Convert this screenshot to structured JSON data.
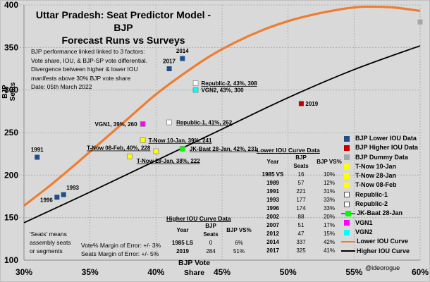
{
  "chart_data": {
    "type": "scatter",
    "title": "Uttar Pradesh: Seat Predictor Model - BJP Forecast Runs vs Surveys",
    "title_lines": [
      "Uttar Pradesh: Seat Predictor Model - BJP",
      "Forecast Runs vs Surveys"
    ],
    "xlabel_lines": [
      "BJP Vote",
      "Share"
    ],
    "ylabel_lines": [
      "BJP",
      "Seats"
    ],
    "xlim": [
      30,
      60
    ],
    "ylim": [
      100,
      400
    ],
    "x_ticks": [
      30,
      35,
      40,
      45,
      50,
      55,
      60
    ],
    "x_tick_labels": [
      "30%",
      "35%",
      "40%",
      "45%",
      "50%",
      "55%",
      "60%"
    ],
    "y_ticks": [
      100,
      150,
      200,
      250,
      300,
      350,
      400
    ],
    "y_tick_labels": [
      "100",
      "150",
      "200",
      "250",
      "300",
      "350",
      "400"
    ],
    "grid": true,
    "legend_position": "right",
    "series": [
      {
        "name": "BJP Lower IOU Data",
        "color": "#1f4e8c",
        "marker": "square",
        "points": [
          {
            "x": 31,
            "y": 221,
            "label": "1991"
          },
          {
            "x": 33,
            "y": 177,
            "label": "1993"
          },
          {
            "x": 32.5,
            "y": 174,
            "label": "1996"
          },
          {
            "x": 42,
            "y": 337,
            "label": "2014"
          },
          {
            "x": 41,
            "y": 325,
            "label": "2017"
          }
        ]
      },
      {
        "name": "BJP Higher IOU Data",
        "color": "#c00000",
        "marker": "square",
        "points": [
          {
            "x": 51,
            "y": 284,
            "label": "2019"
          }
        ]
      },
      {
        "name": "BJP Dummy Data",
        "color": "#a6a6a6",
        "marker": "square",
        "points": [
          {
            "x": 60,
            "y": 380,
            "label": ""
          }
        ]
      },
      {
        "name": "T-Now 10-Jan",
        "color": "#ffff00",
        "marker": "square",
        "points": [
          {
            "x": 39,
            "y": 241,
            "label": "T-Now 10-Jan, 39%, 241"
          }
        ]
      },
      {
        "name": "T-Now 28-Jan",
        "color": "#ffff00",
        "marker": "square",
        "points": [
          {
            "x": 38,
            "y": 222,
            "label": "T-Now 28-Jan, 38%, 222"
          }
        ]
      },
      {
        "name": "T-Now 08-Feb",
        "color": "#ffff00",
        "marker": "square",
        "points": [
          {
            "x": 40,
            "y": 228,
            "label": "T-Now 08-Feb, 40%, 228"
          }
        ]
      },
      {
        "name": "Republic-1",
        "color": "#ffffff",
        "marker": "square",
        "points": [
          {
            "x": 41,
            "y": 262,
            "label": "Republic-1, 41%, 262"
          }
        ]
      },
      {
        "name": "Republic-2",
        "color": "#ffffff",
        "marker": "square",
        "points": [
          {
            "x": 43,
            "y": 308,
            "label": "Republic-2, 43%, 308"
          }
        ]
      },
      {
        "name": "JK-Baat 28-Jan",
        "color": "#00ff00",
        "marker": "square",
        "points": [
          {
            "x": 42,
            "y": 231,
            "label": "JK-Baat 28-Jan, 42%, 231"
          }
        ]
      },
      {
        "name": "VGN1",
        "color": "#ff00ff",
        "marker": "square",
        "points": [
          {
            "x": 39,
            "y": 260,
            "label": "VGN1, 39%, 260"
          }
        ]
      },
      {
        "name": "VGN2",
        "color": "#00ffff",
        "marker": "square",
        "points": [
          {
            "x": 43,
            "y": 300,
            "label": "VGN2, 43%, 300"
          }
        ]
      }
    ],
    "curves": [
      {
        "name": "Lower IOU Curve",
        "color": "#ed7d31",
        "points": [
          [
            30,
            164
          ],
          [
            32,
            188
          ],
          [
            34,
            214
          ],
          [
            36,
            241
          ],
          [
            38,
            268
          ],
          [
            40,
            295
          ],
          [
            42,
            318
          ],
          [
            44,
            339
          ],
          [
            46,
            356
          ],
          [
            48,
            370
          ],
          [
            50,
            381
          ],
          [
            52,
            389
          ],
          [
            54,
            395
          ],
          [
            55,
            397
          ],
          [
            56,
            398
          ],
          [
            58,
            397
          ],
          [
            60,
            393
          ]
        ]
      },
      {
        "name": "Higher IOU Curve",
        "color": "#000000",
        "points": [
          [
            30,
            144
          ],
          [
            35,
            180
          ],
          [
            40,
            217
          ],
          [
            45,
            254
          ],
          [
            50,
            291
          ],
          [
            55,
            324
          ],
          [
            60,
            352
          ]
        ]
      }
    ]
  },
  "texts": {
    "description_lines": [
      "BJP performance linked linked to 3 factors:",
      "Vote share, IOU, & BJP-SP vote differential.",
      "Divergence between higher & lower IOU",
      "manifests above 30% BJP vote share"
    ],
    "date": "Date: 05th March 2022",
    "seats_note_lines": [
      "'Seats' means",
      "assembly seats",
      "or segments"
    ],
    "vote_moe": "Vote% Margin of Error: +/- 3%",
    "seats_moe": "Seats Margin of Error: +/- 5%",
    "watermark": "@ideorogue"
  },
  "lower_table": {
    "title": "Lower IOU Curve Data",
    "headers": [
      "Year",
      "BJP Seats",
      "BJP VS%"
    ],
    "rows": [
      [
        "1985 VS",
        "16",
        "10%"
      ],
      [
        "1989",
        "57",
        "12%"
      ],
      [
        "1991",
        "221",
        "31%"
      ],
      [
        "1993",
        "177",
        "33%"
      ],
      [
        "1996",
        "174",
        "33%"
      ],
      [
        "2002",
        "88",
        "20%"
      ],
      [
        "2007",
        "51",
        "17%"
      ],
      [
        "2012",
        "47",
        "15%"
      ],
      [
        "2014",
        "337",
        "42%"
      ],
      [
        "2017",
        "325",
        "41%"
      ]
    ]
  },
  "higher_table": {
    "title": "Higher IOU Curve Data",
    "headers": [
      "Year",
      "BJP Seats",
      "BJP VS%"
    ],
    "rows": [
      [
        "1985 LS",
        "0",
        "6%"
      ],
      [
        "2019",
        "284",
        "51%"
      ]
    ]
  },
  "legend": [
    {
      "label": "BJP Lower IOU Data",
      "color": "#1f4e8c",
      "kind": "square"
    },
    {
      "label": "BJP Higher IOU Data",
      "color": "#c00000",
      "kind": "square"
    },
    {
      "label": "BJP Dummy Data",
      "color": "#a6a6a6",
      "kind": "square"
    },
    {
      "label": "T-Now 10-Jan",
      "color": "#ffff00",
      "kind": "square"
    },
    {
      "label": "T-Now 28-Jan",
      "color": "#ffff00",
      "kind": "square"
    },
    {
      "label": "T-Now 08-Feb",
      "color": "#ffff00",
      "kind": "square"
    },
    {
      "label": "Republic-1",
      "color": "#ffffff",
      "kind": "square"
    },
    {
      "label": "Republic-2",
      "color": "#ffffff",
      "kind": "square"
    },
    {
      "label": "JK-Baat 28-Jan",
      "color": "#00ff00",
      "kind": "line-square",
      "line_color": "#4472c4"
    },
    {
      "label": "VGN1",
      "color": "#ff00ff",
      "kind": "square"
    },
    {
      "label": "VGN2",
      "color": "#00ffff",
      "kind": "square"
    },
    {
      "label": "Lower IOU Curve",
      "color": "#ed7d31",
      "kind": "line"
    },
    {
      "label": "Higher IOU Curve",
      "color": "#000000",
      "kind": "line"
    }
  ]
}
